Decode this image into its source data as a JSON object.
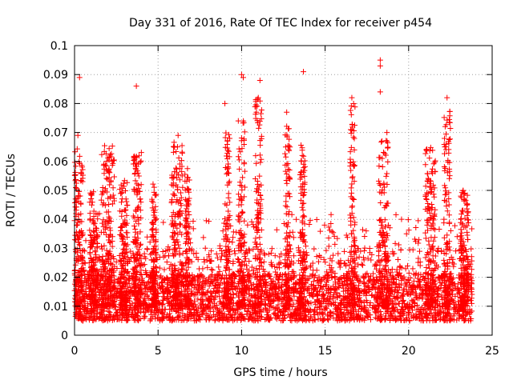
{
  "chart_data": {
    "type": "scatter",
    "title": "Day 331 of 2016, Rate Of TEC Index for receiver p454",
    "xlabel": "GPS time / hours",
    "ylabel": "ROTI / TECUs",
    "xlim": [
      0,
      25
    ],
    "ylim": [
      0,
      0.1
    ],
    "x_ticks": [
      0,
      5,
      10,
      15,
      20,
      25
    ],
    "y_ticks": [
      0,
      0.01,
      0.02,
      0.03,
      0.04,
      0.05,
      0.06,
      0.07,
      0.08,
      0.09,
      0.1
    ],
    "x_tick_labels": [
      "0",
      "5",
      "10",
      "15",
      "20",
      "25"
    ],
    "y_tick_labels": [
      "0",
      "0.01",
      "0.02",
      "0.03",
      "0.04",
      "0.05",
      "0.06",
      "0.07",
      "0.08",
      "0.09",
      "0.1"
    ],
    "grid": true,
    "marker": "+",
    "marker_color": "#ff0000",
    "data_x_range": [
      0,
      23.8
    ],
    "notable_points": [
      {
        "x": 0.3,
        "y": 0.089
      },
      {
        "x": 3.7,
        "y": 0.086
      },
      {
        "x": 10.0,
        "y": 0.09
      },
      {
        "x": 10.1,
        "y": 0.089
      },
      {
        "x": 11.1,
        "y": 0.088
      },
      {
        "x": 13.7,
        "y": 0.091
      },
      {
        "x": 18.3,
        "y": 0.095
      },
      {
        "x": 18.3,
        "y": 0.093
      },
      {
        "x": 18.3,
        "y": 0.084
      },
      {
        "x": 16.6,
        "y": 0.082
      },
      {
        "x": 22.3,
        "y": 0.082
      },
      {
        "x": 9.0,
        "y": 0.08
      },
      {
        "x": 11.0,
        "y": 0.082
      },
      {
        "x": 12.7,
        "y": 0.077
      },
      {
        "x": 18.7,
        "y": 0.07
      },
      {
        "x": 6.2,
        "y": 0.069
      },
      {
        "x": 0.2,
        "y": 0.069
      }
    ],
    "clusters": [
      {
        "x_from": 0.0,
        "x_to": 0.5,
        "peak": 0.068
      },
      {
        "x_from": 0.9,
        "x_to": 1.4,
        "peak": 0.05
      },
      {
        "x_from": 1.6,
        "x_to": 2.4,
        "peak": 0.066
      },
      {
        "x_from": 2.7,
        "x_to": 3.2,
        "peak": 0.055
      },
      {
        "x_from": 3.5,
        "x_to": 4.0,
        "peak": 0.064
      },
      {
        "x_from": 4.6,
        "x_to": 4.9,
        "peak": 0.053
      },
      {
        "x_from": 5.8,
        "x_to": 6.5,
        "peak": 0.069
      },
      {
        "x_from": 6.6,
        "x_to": 6.9,
        "peak": 0.058
      },
      {
        "x_from": 9.0,
        "x_to": 9.3,
        "peak": 0.07
      },
      {
        "x_from": 9.8,
        "x_to": 10.2,
        "peak": 0.075
      },
      {
        "x_from": 10.8,
        "x_to": 11.2,
        "peak": 0.082
      },
      {
        "x_from": 12.6,
        "x_to": 12.9,
        "peak": 0.073
      },
      {
        "x_from": 13.5,
        "x_to": 13.8,
        "peak": 0.068
      },
      {
        "x_from": 16.5,
        "x_to": 16.8,
        "peak": 0.08
      },
      {
        "x_from": 18.2,
        "x_to": 18.8,
        "peak": 0.068
      },
      {
        "x_from": 21.0,
        "x_to": 21.6,
        "peak": 0.065
      },
      {
        "x_from": 22.1,
        "x_to": 22.5,
        "peak": 0.078
      },
      {
        "x_from": 23.1,
        "x_to": 23.6,
        "peak": 0.05
      }
    ]
  }
}
